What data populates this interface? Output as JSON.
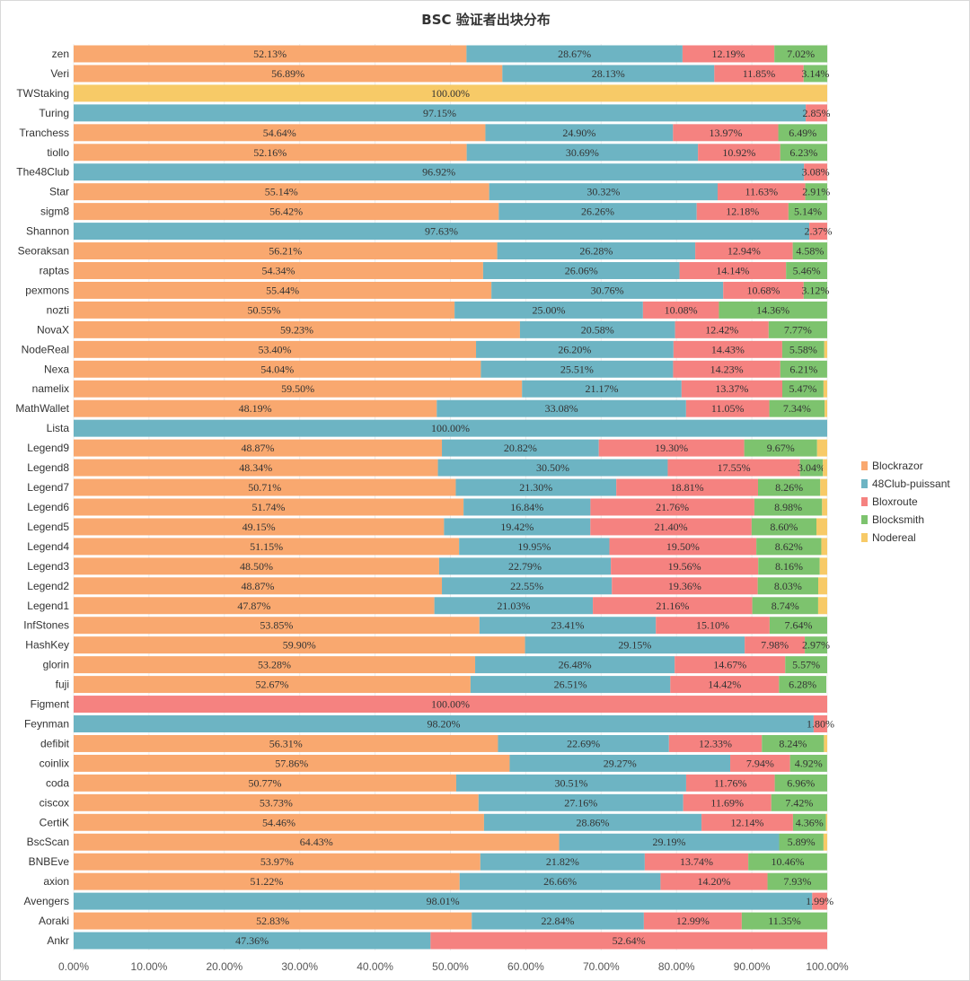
{
  "chart_data": {
    "type": "bar",
    "orientation": "horizontal",
    "stacked": true,
    "title": "BSC 验证者出块分布",
    "xlabel": "",
    "ylabel": "",
    "xlim": [
      0,
      100
    ],
    "xticks": [
      "0.00%",
      "10.00%",
      "20.00%",
      "30.00%",
      "40.00%",
      "50.00%",
      "60.00%",
      "70.00%",
      "80.00%",
      "90.00%",
      "100.00%"
    ],
    "grid": true,
    "legend_position": "right",
    "categories": [
      "zen",
      "Veri",
      "TWStaking",
      "Turing",
      "Tranchess",
      "tiollo",
      "The48Club",
      "Star",
      "sigm8",
      "Shannon",
      "Seoraksan",
      "raptas",
      "pexmons",
      "nozti",
      "NovaX",
      "NodeReal",
      "Nexa",
      "namelix",
      "MathWallet",
      "Lista",
      "Legend9",
      "Legend8",
      "Legend7",
      "Legend6",
      "Legend5",
      "Legend4",
      "Legend3",
      "Legend2",
      "Legend1",
      "InfStones",
      "HashKey",
      "glorin",
      "fuji",
      "Figment",
      "Feynman",
      "defibit",
      "coinlix",
      "coda",
      "ciscox",
      "CertiK",
      "BscScan",
      "BNBEve",
      "axion",
      "Avengers",
      "Aoraki",
      "Ankr"
    ],
    "series": [
      {
        "name": "Blockrazor",
        "color": "#F9A86F",
        "values": [
          52.13,
          56.89,
          0,
          0,
          54.64,
          52.16,
          0,
          55.14,
          56.42,
          0,
          56.21,
          54.34,
          55.44,
          50.55,
          59.23,
          53.4,
          54.04,
          59.5,
          48.19,
          0,
          48.87,
          48.34,
          50.71,
          51.74,
          49.15,
          51.15,
          48.5,
          48.87,
          47.87,
          53.85,
          59.9,
          53.28,
          52.67,
          0,
          0,
          56.31,
          57.86,
          50.77,
          53.73,
          54.46,
          64.43,
          53.97,
          51.22,
          0,
          52.83,
          0
        ]
      },
      {
        "name": "48Club-puissant",
        "color": "#6DB4C3",
        "values": [
          28.67,
          28.13,
          0,
          97.15,
          24.9,
          30.69,
          96.92,
          30.32,
          26.26,
          97.63,
          26.28,
          26.06,
          30.76,
          25.0,
          20.58,
          26.2,
          25.51,
          21.17,
          33.08,
          100.0,
          20.82,
          30.5,
          21.3,
          16.84,
          19.42,
          19.95,
          22.79,
          22.55,
          21.03,
          23.41,
          29.15,
          26.48,
          26.51,
          0,
          98.2,
          22.69,
          29.27,
          30.51,
          27.16,
          28.86,
          29.19,
          21.82,
          26.66,
          98.01,
          22.84,
          47.36
        ]
      },
      {
        "name": "Bloxroute",
        "color": "#F58280",
        "values": [
          12.19,
          11.85,
          0,
          2.85,
          13.97,
          10.92,
          3.08,
          11.63,
          12.18,
          2.37,
          12.94,
          14.14,
          10.68,
          10.08,
          12.42,
          14.43,
          14.23,
          13.37,
          11.05,
          0,
          19.3,
          17.55,
          18.81,
          21.76,
          21.4,
          19.5,
          19.56,
          19.36,
          21.16,
          15.1,
          7.98,
          14.67,
          14.42,
          100.0,
          1.8,
          12.33,
          7.94,
          11.76,
          11.69,
          12.14,
          0,
          13.74,
          14.2,
          1.99,
          12.99,
          52.64
        ]
      },
      {
        "name": "Blocksmith",
        "color": "#7DC36E",
        "values": [
          7.02,
          3.14,
          0,
          0,
          6.49,
          6.23,
          0,
          2.91,
          5.14,
          0,
          4.58,
          5.46,
          3.12,
          14.36,
          7.77,
          5.58,
          6.21,
          5.47,
          7.34,
          0,
          9.67,
          3.04,
          8.26,
          8.98,
          8.6,
          8.62,
          8.16,
          8.03,
          8.74,
          7.64,
          2.97,
          5.57,
          6.28,
          0,
          0,
          8.24,
          4.92,
          6.96,
          7.42,
          4.36,
          5.89,
          10.46,
          7.93,
          0,
          11.35,
          0
        ]
      },
      {
        "name": "Nodereal",
        "color": "#F7CA67",
        "values": [
          0,
          0,
          100.0,
          0,
          0,
          0,
          0,
          0,
          0,
          0,
          0,
          0,
          0,
          0,
          0,
          0.39,
          0,
          0.49,
          0.34,
          0,
          1.34,
          0.57,
          0.92,
          0.68,
          1.43,
          0.78,
          0.99,
          1.19,
          1.2,
          0,
          0,
          0,
          0,
          0,
          0,
          0.43,
          0,
          0,
          0,
          0.18,
          0.49,
          0,
          0,
          0,
          0,
          0
        ]
      }
    ],
    "labeled_series": [
      "Blockrazor",
      "48Club-puissant",
      "Bloxroute",
      "Blocksmith"
    ]
  }
}
